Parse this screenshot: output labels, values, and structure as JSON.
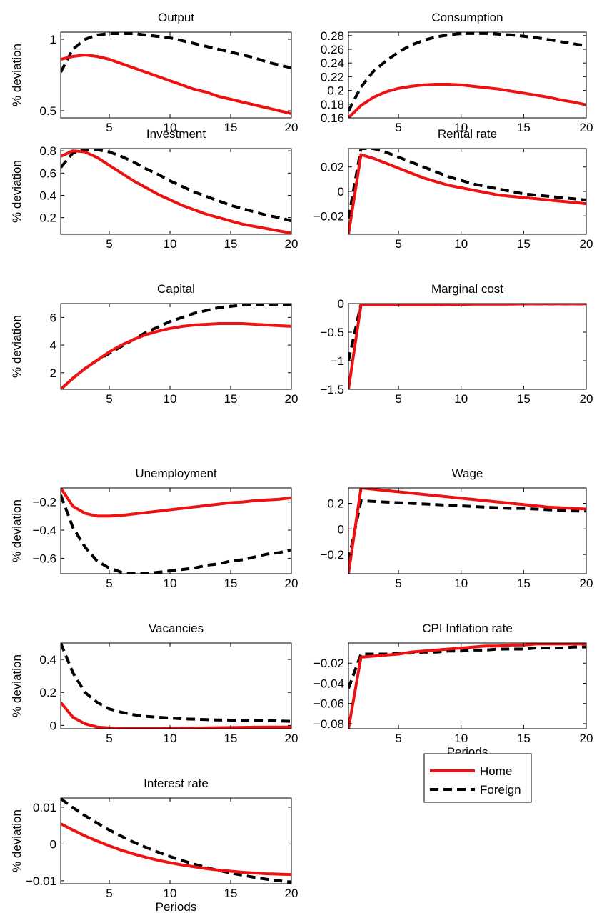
{
  "figure": {
    "legend": {
      "placement": "bottom-right",
      "entries": [
        {
          "label": "Home",
          "color": "#ee1111",
          "style": "solid"
        },
        {
          "label": "Foreign",
          "color": "#000000",
          "style": "dashed"
        }
      ]
    }
  },
  "chart_data": [
    {
      "type": "line",
      "title": "Output",
      "ylabel": "% deviation",
      "xlabel": "",
      "xlim": [
        1,
        20
      ],
      "ylim": [
        0.45,
        1.05
      ],
      "xticks": [
        "5",
        "10",
        "15",
        "20"
      ],
      "yticks": [
        {
          "v": 0.5,
          "label": "0.5"
        },
        {
          "v": 1,
          "label": "1"
        }
      ],
      "x": [
        1,
        2,
        3,
        4,
        5,
        6,
        7,
        8,
        9,
        10,
        11,
        12,
        13,
        14,
        15,
        16,
        17,
        18,
        19,
        20
      ],
      "series": [
        {
          "name": "Home",
          "values": [
            0.86,
            0.88,
            0.89,
            0.88,
            0.86,
            0.83,
            0.8,
            0.77,
            0.74,
            0.71,
            0.68,
            0.65,
            0.63,
            0.6,
            0.58,
            0.56,
            0.54,
            0.52,
            0.5,
            0.48
          ]
        },
        {
          "name": "Foreign",
          "values": [
            0.77,
            0.93,
            1.0,
            1.03,
            1.04,
            1.04,
            1.04,
            1.03,
            1.02,
            1.01,
            0.99,
            0.97,
            0.95,
            0.93,
            0.91,
            0.89,
            0.87,
            0.84,
            0.82,
            0.8
          ]
        }
      ]
    },
    {
      "type": "line",
      "title": "Consumption",
      "ylabel": "",
      "xlabel": "",
      "xlim": [
        1,
        20
      ],
      "ylim": [
        0.16,
        0.285
      ],
      "xticks": [
        "5",
        "10",
        "15",
        "20"
      ],
      "yticks": [
        {
          "v": 0.16,
          "label": "0.16"
        },
        {
          "v": 0.18,
          "label": "0.18"
        },
        {
          "v": 0.2,
          "label": "0.2"
        },
        {
          "v": 0.22,
          "label": "0.22"
        },
        {
          "v": 0.24,
          "label": "0.24"
        },
        {
          "v": 0.26,
          "label": "0.26"
        },
        {
          "v": 0.28,
          "label": "0.28"
        }
      ],
      "x": [
        1,
        2,
        3,
        4,
        5,
        6,
        7,
        8,
        9,
        10,
        11,
        12,
        13,
        14,
        15,
        16,
        17,
        18,
        19,
        20
      ],
      "series": [
        {
          "name": "Home",
          "values": [
            0.16,
            0.178,
            0.19,
            0.198,
            0.203,
            0.206,
            0.208,
            0.209,
            0.209,
            0.208,
            0.206,
            0.204,
            0.202,
            0.199,
            0.196,
            0.193,
            0.19,
            0.186,
            0.183,
            0.179
          ]
        },
        {
          "name": "Foreign",
          "values": [
            0.17,
            0.205,
            0.228,
            0.243,
            0.256,
            0.266,
            0.273,
            0.278,
            0.281,
            0.283,
            0.283,
            0.283,
            0.282,
            0.281,
            0.279,
            0.277,
            0.274,
            0.271,
            0.268,
            0.265
          ]
        }
      ]
    },
    {
      "type": "line",
      "title": "Investment",
      "ylabel": "% deviation",
      "xlabel": "",
      "xlim": [
        1,
        20
      ],
      "ylim": [
        0.05,
        0.82
      ],
      "xticks": [
        "5",
        "10",
        "15",
        "20"
      ],
      "yticks": [
        {
          "v": 0.2,
          "label": "0.2"
        },
        {
          "v": 0.4,
          "label": "0.4"
        },
        {
          "v": 0.6,
          "label": "0.6"
        },
        {
          "v": 0.8,
          "label": "0.8"
        }
      ],
      "x": [
        1,
        2,
        3,
        4,
        5,
        6,
        7,
        8,
        9,
        10,
        11,
        12,
        13,
        14,
        15,
        16,
        17,
        18,
        19,
        20
      ],
      "series": [
        {
          "name": "Home",
          "values": [
            0.75,
            0.8,
            0.79,
            0.74,
            0.67,
            0.6,
            0.53,
            0.47,
            0.41,
            0.36,
            0.31,
            0.27,
            0.23,
            0.2,
            0.17,
            0.14,
            0.12,
            0.1,
            0.08,
            0.06
          ]
        },
        {
          "name": "Foreign",
          "values": [
            0.65,
            0.78,
            0.81,
            0.81,
            0.79,
            0.75,
            0.7,
            0.64,
            0.59,
            0.53,
            0.48,
            0.43,
            0.39,
            0.35,
            0.31,
            0.28,
            0.25,
            0.22,
            0.2,
            0.17
          ]
        }
      ]
    },
    {
      "type": "line",
      "title": "Rental rate",
      "ylabel": "",
      "xlabel": "",
      "xlim": [
        1,
        20
      ],
      "ylim": [
        -0.035,
        0.035
      ],
      "xticks": [
        "5",
        "10",
        "15",
        "20"
      ],
      "yticks": [
        {
          "v": -0.02,
          "label": "−0.02"
        },
        {
          "v": 0,
          "label": "0"
        },
        {
          "v": 0.02,
          "label": "0.02"
        }
      ],
      "x": [
        1,
        2,
        3,
        4,
        5,
        6,
        7,
        8,
        9,
        10,
        11,
        12,
        13,
        14,
        15,
        16,
        17,
        18,
        19,
        20
      ],
      "series": [
        {
          "name": "Home",
          "values": [
            -0.035,
            0.03,
            0.027,
            0.023,
            0.019,
            0.015,
            0.011,
            0.008,
            0.005,
            0.003,
            0.001,
            -0.001,
            -0.003,
            -0.004,
            -0.005,
            -0.006,
            -0.007,
            -0.008,
            -0.009,
            -0.01
          ]
        },
        {
          "name": "Foreign",
          "values": [
            -0.022,
            0.035,
            0.035,
            0.032,
            0.028,
            0.024,
            0.02,
            0.016,
            0.012,
            0.009,
            0.006,
            0.004,
            0.002,
            0.0,
            -0.002,
            -0.003,
            -0.004,
            -0.005,
            -0.006,
            -0.007
          ]
        }
      ]
    },
    {
      "type": "line",
      "title": "Capital",
      "ylabel": "% deviation",
      "xlabel": "",
      "xlim": [
        1,
        20
      ],
      "ylim": [
        0.8,
        7.0
      ],
      "xticks": [
        "5",
        "10",
        "15",
        "20"
      ],
      "yticks": [
        {
          "v": 2,
          "label": "2"
        },
        {
          "v": 4,
          "label": "4"
        },
        {
          "v": 6,
          "label": "6"
        }
      ],
      "x": [
        1,
        2,
        3,
        4,
        5,
        6,
        7,
        8,
        9,
        10,
        11,
        12,
        13,
        14,
        15,
        16,
        17,
        18,
        19,
        20
      ],
      "series": [
        {
          "name": "Home",
          "values": [
            0.8,
            1.6,
            2.3,
            2.9,
            3.5,
            4.0,
            4.4,
            4.75,
            5.0,
            5.2,
            5.35,
            5.45,
            5.5,
            5.55,
            5.55,
            5.55,
            5.5,
            5.45,
            5.4,
            5.35
          ]
        },
        {
          "name": "Foreign",
          "values": [
            0.8,
            1.6,
            2.3,
            2.9,
            3.4,
            3.9,
            4.4,
            4.9,
            5.3,
            5.7,
            6.0,
            6.3,
            6.5,
            6.7,
            6.8,
            6.9,
            6.95,
            6.95,
            6.95,
            6.95
          ]
        }
      ]
    },
    {
      "type": "line",
      "title": "Marginal cost",
      "ylabel": "",
      "xlabel": "",
      "xlim": [
        1,
        20
      ],
      "ylim": [
        -1.5,
        0
      ],
      "xticks": [
        "5",
        "10",
        "15",
        "20"
      ],
      "yticks": [
        {
          "v": -1.5,
          "label": "−1.5"
        },
        {
          "v": -1,
          "label": "−1"
        },
        {
          "v": -0.5,
          "label": "−0.5"
        },
        {
          "v": 0,
          "label": "0"
        }
      ],
      "x": [
        1,
        2,
        3,
        4,
        5,
        6,
        7,
        8,
        9,
        10,
        11,
        12,
        13,
        14,
        15,
        16,
        17,
        18,
        19,
        20
      ],
      "series": [
        {
          "name": "Home",
          "values": [
            -1.5,
            -0.02,
            -0.02,
            -0.02,
            -0.02,
            -0.02,
            -0.02,
            -0.02,
            -0.015,
            -0.015,
            -0.01,
            -0.01,
            -0.01,
            -0.01,
            -0.005,
            -0.005,
            -0.005,
            -0.005,
            -0.005,
            -0.005
          ]
        },
        {
          "name": "Foreign",
          "values": [
            -1.0,
            -0.01,
            -0.01,
            -0.01,
            -0.01,
            -0.01,
            -0.01,
            -0.01,
            -0.005,
            -0.005,
            -0.005,
            -0.005,
            -0.005,
            -0.005,
            -0.005,
            -0.005,
            -0.005,
            -0.005,
            -0.005,
            -0.005
          ]
        }
      ]
    },
    {
      "type": "line",
      "title": "Unemployment",
      "ylabel": "% deviation",
      "xlabel": "",
      "xlim": [
        1,
        20
      ],
      "ylim": [
        -0.71,
        -0.1
      ],
      "xticks": [
        "5",
        "10",
        "15",
        "20"
      ],
      "yticks": [
        {
          "v": -0.6,
          "label": "−0.6"
        },
        {
          "v": -0.4,
          "label": "−0.4"
        },
        {
          "v": -0.2,
          "label": "−0.2"
        }
      ],
      "x": [
        1,
        2,
        3,
        4,
        5,
        6,
        7,
        8,
        9,
        10,
        11,
        12,
        13,
        14,
        15,
        16,
        17,
        18,
        19,
        20
      ],
      "series": [
        {
          "name": "Home",
          "values": [
            -0.1,
            -0.23,
            -0.28,
            -0.3,
            -0.3,
            -0.295,
            -0.285,
            -0.275,
            -0.265,
            -0.255,
            -0.245,
            -0.235,
            -0.225,
            -0.215,
            -0.205,
            -0.2,
            -0.19,
            -0.185,
            -0.18,
            -0.17
          ]
        },
        {
          "name": "Foreign",
          "values": [
            -0.15,
            -0.38,
            -0.52,
            -0.62,
            -0.67,
            -0.7,
            -0.71,
            -0.71,
            -0.7,
            -0.69,
            -0.68,
            -0.67,
            -0.65,
            -0.64,
            -0.62,
            -0.61,
            -0.59,
            -0.57,
            -0.56,
            -0.54
          ]
        }
      ]
    },
    {
      "type": "line",
      "title": "Wage",
      "ylabel": "",
      "xlabel": "",
      "xlim": [
        1,
        20
      ],
      "ylim": [
        -0.35,
        0.32
      ],
      "xticks": [
        "5",
        "10",
        "15",
        "20"
      ],
      "yticks": [
        {
          "v": -0.2,
          "label": "−0.2"
        },
        {
          "v": 0,
          "label": "0"
        },
        {
          "v": 0.2,
          "label": "0.2"
        }
      ],
      "x": [
        1,
        2,
        3,
        4,
        5,
        6,
        7,
        8,
        9,
        10,
        11,
        12,
        13,
        14,
        15,
        16,
        17,
        18,
        19,
        20
      ],
      "series": [
        {
          "name": "Home",
          "values": [
            -0.35,
            0.32,
            0.31,
            0.3,
            0.29,
            0.28,
            0.27,
            0.26,
            0.25,
            0.24,
            0.23,
            0.22,
            0.21,
            0.2,
            0.19,
            0.18,
            0.17,
            0.165,
            0.16,
            0.155
          ]
        },
        {
          "name": "Foreign",
          "values": [
            -0.25,
            0.22,
            0.215,
            0.21,
            0.205,
            0.2,
            0.195,
            0.19,
            0.185,
            0.18,
            0.175,
            0.17,
            0.165,
            0.16,
            0.16,
            0.155,
            0.15,
            0.145,
            0.14,
            0.14
          ]
        }
      ]
    },
    {
      "type": "line",
      "title": "Vacancies",
      "ylabel": "% deviation",
      "xlabel": "",
      "xlim": [
        1,
        20
      ],
      "ylim": [
        -0.02,
        0.5
      ],
      "xticks": [
        "5",
        "10",
        "15",
        "20"
      ],
      "yticks": [
        {
          "v": 0,
          "label": "0"
        },
        {
          "v": 0.2,
          "label": "0.2"
        },
        {
          "v": 0.4,
          "label": "0.4"
        }
      ],
      "x": [
        1,
        2,
        3,
        4,
        5,
        6,
        7,
        8,
        9,
        10,
        11,
        12,
        13,
        14,
        15,
        16,
        17,
        18,
        19,
        20
      ],
      "series": [
        {
          "name": "Home",
          "values": [
            0.14,
            0.05,
            0.01,
            -0.01,
            -0.015,
            -0.02,
            -0.02,
            -0.02,
            -0.02,
            -0.018,
            -0.017,
            -0.016,
            -0.015,
            -0.014,
            -0.013,
            -0.012,
            -0.011,
            -0.01,
            -0.01,
            -0.01
          ]
        },
        {
          "name": "Foreign",
          "values": [
            0.5,
            0.32,
            0.2,
            0.14,
            0.1,
            0.08,
            0.065,
            0.055,
            0.05,
            0.045,
            0.04,
            0.038,
            0.035,
            0.033,
            0.032,
            0.03,
            0.03,
            0.028,
            0.027,
            0.025
          ]
        }
      ]
    },
    {
      "type": "line",
      "title": "CPI Inflation rate",
      "ylabel": "",
      "xlabel": "Periods",
      "xlim": [
        1,
        20
      ],
      "ylim": [
        -0.085,
        0
      ],
      "xticks": [
        "5",
        "10",
        "15",
        "20"
      ],
      "yticks": [
        {
          "v": -0.08,
          "label": "−0.08"
        },
        {
          "v": -0.06,
          "label": "−0.06"
        },
        {
          "v": -0.04,
          "label": "−0.04"
        },
        {
          "v": -0.02,
          "label": "−0.02"
        }
      ],
      "x": [
        1,
        2,
        3,
        4,
        5,
        6,
        7,
        8,
        9,
        10,
        11,
        12,
        13,
        14,
        15,
        16,
        17,
        18,
        19,
        20
      ],
      "series": [
        {
          "name": "Home",
          "values": [
            -0.085,
            -0.014,
            -0.013,
            -0.012,
            -0.011,
            -0.009,
            -0.008,
            -0.007,
            -0.006,
            -0.005,
            -0.004,
            -0.003,
            -0.003,
            -0.002,
            -0.002,
            -0.001,
            -0.001,
            -0.001,
            -0.001,
            -0.001
          ]
        },
        {
          "name": "Foreign",
          "values": [
            -0.045,
            -0.011,
            -0.011,
            -0.011,
            -0.01,
            -0.01,
            -0.009,
            -0.009,
            -0.008,
            -0.008,
            -0.007,
            -0.007,
            -0.006,
            -0.006,
            -0.006,
            -0.005,
            -0.005,
            -0.005,
            -0.004,
            -0.004
          ]
        }
      ]
    },
    {
      "type": "line",
      "title": "Interest rate",
      "ylabel": "% deviation",
      "xlabel": "Periods",
      "xlim": [
        1,
        20
      ],
      "ylim": [
        -0.0108,
        0.0125
      ],
      "xticks": [
        "5",
        "10",
        "15",
        "20"
      ],
      "yticks": [
        {
          "v": -0.01,
          "label": "−0.01"
        },
        {
          "v": 0,
          "label": "0"
        },
        {
          "v": 0.01,
          "label": "0.01"
        }
      ],
      "x": [
        1,
        2,
        3,
        4,
        5,
        6,
        7,
        8,
        9,
        10,
        11,
        12,
        13,
        14,
        15,
        16,
        17,
        18,
        19,
        20
      ],
      "series": [
        {
          "name": "Home",
          "values": [
            0.0055,
            0.0038,
            0.0022,
            0.0008,
            -0.0005,
            -0.0017,
            -0.0027,
            -0.0036,
            -0.0044,
            -0.0051,
            -0.0057,
            -0.0062,
            -0.0067,
            -0.0071,
            -0.0074,
            -0.0077,
            -0.0079,
            -0.0081,
            -0.0082,
            -0.0083
          ]
        },
        {
          "name": "Foreign",
          "values": [
            0.0123,
            0.0099,
            0.0077,
            0.0057,
            0.0038,
            0.0021,
            0.0005,
            -0.0009,
            -0.0022,
            -0.0034,
            -0.0045,
            -0.0055,
            -0.0064,
            -0.0072,
            -0.0079,
            -0.0085,
            -0.0091,
            -0.0096,
            -0.01,
            -0.0104
          ]
        }
      ]
    }
  ]
}
